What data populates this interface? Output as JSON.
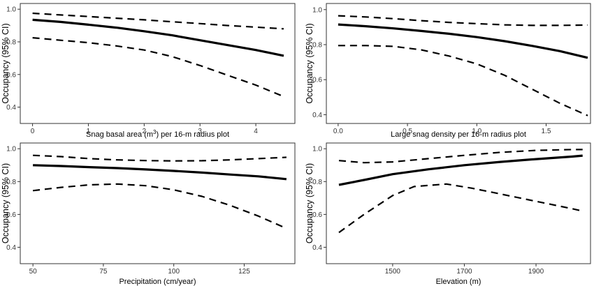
{
  "chart_data": [
    {
      "type": "line",
      "xlabel": "Snag basal area (m³) per 16-m radius plot",
      "ylabel": "Occupancy (95% CI)",
      "xlim": [
        -0.22,
        4.7
      ],
      "ylim": [
        0.3,
        1.035
      ],
      "x_ticks": [
        0,
        1,
        2,
        3,
        4
      ],
      "y_ticks": [
        0.4,
        0.6,
        0.8,
        1.0
      ],
      "y_tick_labels": [
        "0.4",
        "0.6",
        "0.8",
        "1.0"
      ],
      "grid": false,
      "series": [
        {
          "role": "estimate",
          "style": "solid",
          "x": [
            0,
            0.5,
            1,
            1.5,
            2,
            2.5,
            3,
            3.5,
            4,
            4.5
          ],
          "y": [
            0.935,
            0.922,
            0.905,
            0.887,
            0.865,
            0.84,
            0.81,
            0.78,
            0.75,
            0.715
          ]
        },
        {
          "role": "upper-ci",
          "style": "dashed",
          "x": [
            0,
            0.5,
            1,
            1.5,
            2,
            2.5,
            3,
            3.5,
            4,
            4.5
          ],
          "y": [
            0.975,
            0.965,
            0.955,
            0.945,
            0.935,
            0.923,
            0.912,
            0.9,
            0.89,
            0.88
          ]
        },
        {
          "role": "lower-ci",
          "style": "dashed",
          "x": [
            0,
            0.5,
            1,
            1.5,
            2,
            2.5,
            3,
            3.5,
            4,
            4.5
          ],
          "y": [
            0.825,
            0.81,
            0.795,
            0.775,
            0.75,
            0.71,
            0.655,
            0.595,
            0.535,
            0.465
          ]
        }
      ]
    },
    {
      "type": "line",
      "xlabel": "Large snag density per 16-m radius plot",
      "ylabel": "Occupancy (95% CI)",
      "xlim": [
        -0.085,
        1.82
      ],
      "ylim": [
        0.35,
        1.035
      ],
      "x_ticks": [
        0.0,
        0.5,
        1.0,
        1.5
      ],
      "x_tick_labels": [
        "0.0",
        "0.5",
        "1.0",
        "1.5"
      ],
      "y_ticks": [
        0.4,
        0.6,
        0.8,
        1.0
      ],
      "y_tick_labels": [
        "0.4",
        "0.6",
        "0.8",
        "1.0"
      ],
      "grid": false,
      "series": [
        {
          "role": "estimate",
          "style": "solid",
          "x": [
            0,
            0.2,
            0.4,
            0.6,
            0.8,
            1.0,
            1.2,
            1.4,
            1.6,
            1.8
          ],
          "y": [
            0.915,
            0.905,
            0.893,
            0.878,
            0.862,
            0.843,
            0.82,
            0.793,
            0.763,
            0.725
          ]
        },
        {
          "role": "upper-ci",
          "style": "dashed",
          "x": [
            0,
            0.2,
            0.4,
            0.6,
            0.8,
            1.0,
            1.2,
            1.4,
            1.6,
            1.8
          ],
          "y": [
            0.965,
            0.958,
            0.948,
            0.937,
            0.927,
            0.92,
            0.913,
            0.91,
            0.91,
            0.912
          ]
        },
        {
          "role": "lower-ci",
          "style": "dashed",
          "x": [
            0,
            0.2,
            0.4,
            0.6,
            0.8,
            1.0,
            1.2,
            1.4,
            1.6,
            1.8
          ],
          "y": [
            0.795,
            0.795,
            0.79,
            0.77,
            0.735,
            0.69,
            0.625,
            0.545,
            0.465,
            0.395
          ]
        }
      ]
    },
    {
      "type": "line",
      "xlabel": "Precipitation (cm/year)",
      "ylabel": "Occupancy (95% CI)",
      "xlim": [
        45.5,
        143
      ],
      "ylim": [
        0.3,
        1.035
      ],
      "x_ticks": [
        50,
        75,
        100,
        125
      ],
      "y_ticks": [
        0.4,
        0.6,
        0.8,
        1.0
      ],
      "y_tick_labels": [
        "0.4",
        "0.6",
        "0.8",
        "1.0"
      ],
      "grid": false,
      "series": [
        {
          "role": "estimate",
          "style": "solid",
          "x": [
            50,
            60,
            70,
            80,
            90,
            100,
            110,
            120,
            130,
            140
          ],
          "y": [
            0.9,
            0.895,
            0.888,
            0.882,
            0.874,
            0.865,
            0.855,
            0.843,
            0.832,
            0.815
          ]
        },
        {
          "role": "upper-ci",
          "style": "dashed",
          "x": [
            50,
            60,
            70,
            80,
            90,
            100,
            110,
            120,
            130,
            140
          ],
          "y": [
            0.96,
            0.952,
            0.94,
            0.932,
            0.928,
            0.926,
            0.927,
            0.932,
            0.94,
            0.948
          ]
        },
        {
          "role": "lower-ci",
          "style": "dashed",
          "x": [
            50,
            60,
            70,
            80,
            90,
            100,
            110,
            120,
            130,
            140
          ],
          "y": [
            0.745,
            0.765,
            0.78,
            0.785,
            0.775,
            0.75,
            0.71,
            0.655,
            0.59,
            0.515
          ]
        }
      ]
    },
    {
      "type": "line",
      "xlabel": "Elevation (m)",
      "ylabel": "Occupancy (95% CI)",
      "xlim": [
        1315,
        2052
      ],
      "ylim": [
        0.3,
        1.035
      ],
      "x_ticks": [
        1500,
        1700,
        1900
      ],
      "y_ticks": [
        0.4,
        0.6,
        0.8,
        1.0
      ],
      "y_tick_labels": [
        "0.4",
        "0.6",
        "0.8",
        "1.0"
      ],
      "grid": false,
      "series": [
        {
          "role": "estimate",
          "style": "solid",
          "x": [
            1350,
            1420,
            1500,
            1600,
            1700,
            1800,
            1900,
            2000,
            2030
          ],
          "y": [
            0.78,
            0.81,
            0.845,
            0.875,
            0.9,
            0.92,
            0.937,
            0.952,
            0.958
          ]
        },
        {
          "role": "upper-ci",
          "style": "dashed",
          "x": [
            1350,
            1420,
            1500,
            1600,
            1700,
            1800,
            1900,
            2000,
            2030
          ],
          "y": [
            0.928,
            0.915,
            0.92,
            0.94,
            0.96,
            0.978,
            0.99,
            0.995,
            0.995
          ]
        },
        {
          "role": "lower-ci",
          "style": "dashed",
          "x": [
            1350,
            1420,
            1500,
            1560,
            1650,
            1720,
            1800,
            1900,
            2000,
            2030
          ],
          "y": [
            0.49,
            0.6,
            0.715,
            0.77,
            0.785,
            0.76,
            0.725,
            0.68,
            0.635,
            0.62
          ]
        }
      ]
    }
  ]
}
